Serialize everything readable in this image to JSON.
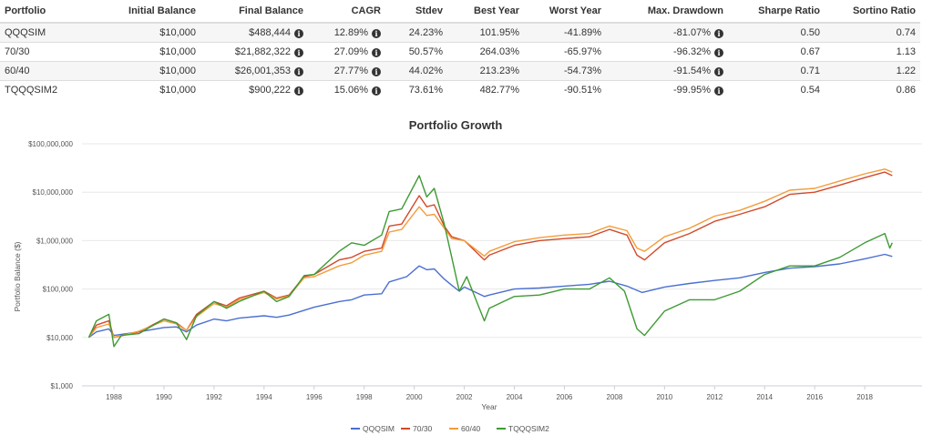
{
  "table": {
    "headers": [
      "Portfolio",
      "Initial Balance",
      "Final Balance",
      "CAGR",
      "Stdev",
      "Best Year",
      "Worst Year",
      "Max. Drawdown",
      "Sharpe Ratio",
      "Sortino Ratio"
    ],
    "rows": [
      {
        "portfolio": "QQQSIM",
        "initial": "$10,000",
        "final": "$488,444",
        "cagr": "12.89%",
        "stdev": "24.23%",
        "best": "101.95%",
        "worst": "-41.89%",
        "maxdd": "-81.07%",
        "sharpe": "0.50",
        "sortino": "0.74"
      },
      {
        "portfolio": "70/30",
        "initial": "$10,000",
        "final": "$21,882,322",
        "cagr": "27.09%",
        "stdev": "50.57%",
        "best": "264.03%",
        "worst": "-65.97%",
        "maxdd": "-96.32%",
        "sharpe": "0.67",
        "sortino": "1.13"
      },
      {
        "portfolio": "60/40",
        "initial": "$10,000",
        "final": "$26,001,353",
        "cagr": "27.77%",
        "stdev": "44.02%",
        "best": "213.23%",
        "worst": "-54.73%",
        "maxdd": "-91.54%",
        "sharpe": "0.71",
        "sortino": "1.22"
      },
      {
        "portfolio": "TQQQSIM2",
        "initial": "$10,000",
        "final": "$900,222",
        "cagr": "15.06%",
        "stdev": "73.61%",
        "best": "482.77%",
        "worst": "-90.51%",
        "maxdd": "-99.95%",
        "sharpe": "0.54",
        "sortino": "0.86"
      }
    ],
    "info_icon": "info-circle-icon"
  },
  "chart_data": {
    "type": "line",
    "title": "Portfolio Growth",
    "xlabel": "Year",
    "ylabel": "Portfolio Balance ($)",
    "y_scale": "log",
    "ylim": [
      1000,
      100000000
    ],
    "xlim": [
      1986.2,
      2019.5
    ],
    "y_ticks": [
      "$1,000",
      "$10,000",
      "$100,000",
      "$1,000,000",
      "$10,000,000",
      "$100,000,000"
    ],
    "y_tick_values": [
      1000,
      10000,
      100000,
      1000000,
      10000000,
      100000000
    ],
    "x_ticks": [
      "1988",
      "1990",
      "1992",
      "1994",
      "1996",
      "1998",
      "2000",
      "2002",
      "2004",
      "2006",
      "2008",
      "2010",
      "2012",
      "2014",
      "2016",
      "2018"
    ],
    "grid": true,
    "legend_position": "bottom",
    "series": [
      {
        "name": "QQQSIM",
        "color": "#4a6fd1",
        "points": [
          [
            1987,
            10000
          ],
          [
            1987.3,
            13000
          ],
          [
            1987.8,
            15000
          ],
          [
            1988,
            11000
          ],
          [
            1989,
            13000
          ],
          [
            1990,
            16000
          ],
          [
            1990.5,
            16500
          ],
          [
            1990.9,
            13000
          ],
          [
            1991.3,
            18000
          ],
          [
            1992,
            24000
          ],
          [
            1992.5,
            22000
          ],
          [
            1993,
            25000
          ],
          [
            1994,
            28000
          ],
          [
            1994.5,
            26000
          ],
          [
            1995,
            29000
          ],
          [
            1996,
            42000
          ],
          [
            1997,
            55000
          ],
          [
            1997.5,
            60000
          ],
          [
            1998,
            75000
          ],
          [
            1998.7,
            80000
          ],
          [
            1999,
            140000
          ],
          [
            1999.7,
            180000
          ],
          [
            2000.2,
            300000
          ],
          [
            2000.5,
            250000
          ],
          [
            2000.8,
            260000
          ],
          [
            2001.2,
            160000
          ],
          [
            2001.5,
            120000
          ],
          [
            2001.8,
            90000
          ],
          [
            2002,
            110000
          ],
          [
            2002.8,
            70000
          ],
          [
            2003,
            75000
          ],
          [
            2004,
            100000
          ],
          [
            2005,
            105000
          ],
          [
            2006,
            115000
          ],
          [
            2007,
            125000
          ],
          [
            2007.8,
            145000
          ],
          [
            2008.5,
            115000
          ],
          [
            2009.1,
            85000
          ],
          [
            2010,
            110000
          ],
          [
            2011,
            130000
          ],
          [
            2012,
            150000
          ],
          [
            2013,
            170000
          ],
          [
            2014,
            220000
          ],
          [
            2015,
            270000
          ],
          [
            2016,
            290000
          ],
          [
            2017,
            330000
          ],
          [
            2018,
            420000
          ],
          [
            2018.8,
            520000
          ],
          [
            2019.1,
            470000
          ]
        ]
      },
      {
        "name": "70/30",
        "color": "#d14a2b",
        "points": [
          [
            1987,
            10000
          ],
          [
            1987.3,
            18000
          ],
          [
            1987.8,
            22000
          ],
          [
            1988,
            10000
          ],
          [
            1989,
            13000
          ],
          [
            1990,
            24000
          ],
          [
            1990.5,
            20000
          ],
          [
            1990.9,
            14000
          ],
          [
            1991.3,
            30000
          ],
          [
            1992,
            55000
          ],
          [
            1992.5,
            45000
          ],
          [
            1993,
            65000
          ],
          [
            1994,
            90000
          ],
          [
            1994.5,
            65000
          ],
          [
            1995,
            75000
          ],
          [
            1995.6,
            180000
          ],
          [
            1996,
            200000
          ],
          [
            1997,
            400000
          ],
          [
            1997.5,
            450000
          ],
          [
            1998,
            600000
          ],
          [
            1998.7,
            700000
          ],
          [
            1999,
            2000000
          ],
          [
            1999.5,
            2200000
          ],
          [
            2000.2,
            8500000
          ],
          [
            2000.5,
            5000000
          ],
          [
            2000.8,
            5500000
          ],
          [
            2001.2,
            2000000
          ],
          [
            2001.5,
            1200000
          ],
          [
            2002,
            1000000
          ],
          [
            2002.8,
            400000
          ],
          [
            2003,
            500000
          ],
          [
            2004,
            800000
          ],
          [
            2005,
            1000000
          ],
          [
            2006,
            1100000
          ],
          [
            2007,
            1200000
          ],
          [
            2007.8,
            1700000
          ],
          [
            2008.5,
            1300000
          ],
          [
            2008.9,
            500000
          ],
          [
            2009.2,
            400000
          ],
          [
            2010,
            900000
          ],
          [
            2011,
            1400000
          ],
          [
            2012,
            2500000
          ],
          [
            2013,
            3500000
          ],
          [
            2014,
            5000000
          ],
          [
            2015,
            9000000
          ],
          [
            2016,
            10000000
          ],
          [
            2017,
            14000000
          ],
          [
            2018,
            20000000
          ],
          [
            2018.8,
            26000000
          ],
          [
            2019.1,
            22000000
          ]
        ]
      },
      {
        "name": "60/40",
        "color": "#f39c3a",
        "points": [
          [
            1987,
            10000
          ],
          [
            1987.3,
            16000
          ],
          [
            1987.8,
            19000
          ],
          [
            1988,
            10000
          ],
          [
            1989,
            13500
          ],
          [
            1990,
            22000
          ],
          [
            1990.5,
            19000
          ],
          [
            1990.9,
            14000
          ],
          [
            1991.3,
            27000
          ],
          [
            1992,
            50000
          ],
          [
            1992.5,
            42000
          ],
          [
            1993,
            60000
          ],
          [
            1994,
            85000
          ],
          [
            1994.5,
            62000
          ],
          [
            1995,
            72000
          ],
          [
            1995.6,
            170000
          ],
          [
            1996,
            180000
          ],
          [
            1997,
            300000
          ],
          [
            1997.5,
            350000
          ],
          [
            1998,
            500000
          ],
          [
            1998.7,
            600000
          ],
          [
            1999,
            1500000
          ],
          [
            1999.5,
            1700000
          ],
          [
            2000.2,
            5000000
          ],
          [
            2000.5,
            3300000
          ],
          [
            2000.8,
            3500000
          ],
          [
            2001.2,
            1800000
          ],
          [
            2001.5,
            1100000
          ],
          [
            2002,
            1000000
          ],
          [
            2002.8,
            480000
          ],
          [
            2003,
            600000
          ],
          [
            2004,
            950000
          ],
          [
            2005,
            1150000
          ],
          [
            2006,
            1300000
          ],
          [
            2007,
            1400000
          ],
          [
            2007.8,
            2000000
          ],
          [
            2008.5,
            1600000
          ],
          [
            2008.9,
            700000
          ],
          [
            2009.2,
            600000
          ],
          [
            2010,
            1200000
          ],
          [
            2011,
            1800000
          ],
          [
            2012,
            3200000
          ],
          [
            2013,
            4200000
          ],
          [
            2014,
            6500000
          ],
          [
            2015,
            11000000
          ],
          [
            2016,
            12000000
          ],
          [
            2017,
            17000000
          ],
          [
            2018,
            24000000
          ],
          [
            2018.8,
            30000000
          ],
          [
            2019.1,
            26000000
          ]
        ]
      },
      {
        "name": "TQQQSIM2",
        "color": "#3e9a34",
        "points": [
          [
            1987,
            10000
          ],
          [
            1987.3,
            22000
          ],
          [
            1987.8,
            30000
          ],
          [
            1988,
            6500
          ],
          [
            1988.3,
            11000
          ],
          [
            1989,
            12000
          ],
          [
            1990,
            24000
          ],
          [
            1990.5,
            20000
          ],
          [
            1990.9,
            9000
          ],
          [
            1991.3,
            28000
          ],
          [
            1992,
            55000
          ],
          [
            1992.5,
            40000
          ],
          [
            1993,
            55000
          ],
          [
            1994,
            90000
          ],
          [
            1994.5,
            55000
          ],
          [
            1995,
            70000
          ],
          [
            1995.6,
            190000
          ],
          [
            1996,
            200000
          ],
          [
            1997,
            600000
          ],
          [
            1997.5,
            900000
          ],
          [
            1998,
            800000
          ],
          [
            1998.7,
            1300000
          ],
          [
            1999,
            4000000
          ],
          [
            1999.5,
            4500000
          ],
          [
            2000.2,
            22000000
          ],
          [
            2000.5,
            8000000
          ],
          [
            2000.8,
            12000000
          ],
          [
            2001.2,
            2200000
          ],
          [
            2001.5,
            450000
          ],
          [
            2001.8,
            90000
          ],
          [
            2002.1,
            180000
          ],
          [
            2002.8,
            22000
          ],
          [
            2003,
            40000
          ],
          [
            2004,
            70000
          ],
          [
            2005,
            75000
          ],
          [
            2006,
            100000
          ],
          [
            2007,
            100000
          ],
          [
            2007.8,
            170000
          ],
          [
            2008.4,
            90000
          ],
          [
            2008.9,
            15000
          ],
          [
            2009.2,
            11000
          ],
          [
            2010,
            35000
          ],
          [
            2011,
            60000
          ],
          [
            2012,
            60000
          ],
          [
            2013,
            90000
          ],
          [
            2014,
            200000
          ],
          [
            2015,
            300000
          ],
          [
            2016,
            300000
          ],
          [
            2017,
            450000
          ],
          [
            2018,
            900000
          ],
          [
            2018.8,
            1400000
          ],
          [
            2019,
            700000
          ],
          [
            2019.1,
            900000
          ]
        ]
      }
    ]
  }
}
